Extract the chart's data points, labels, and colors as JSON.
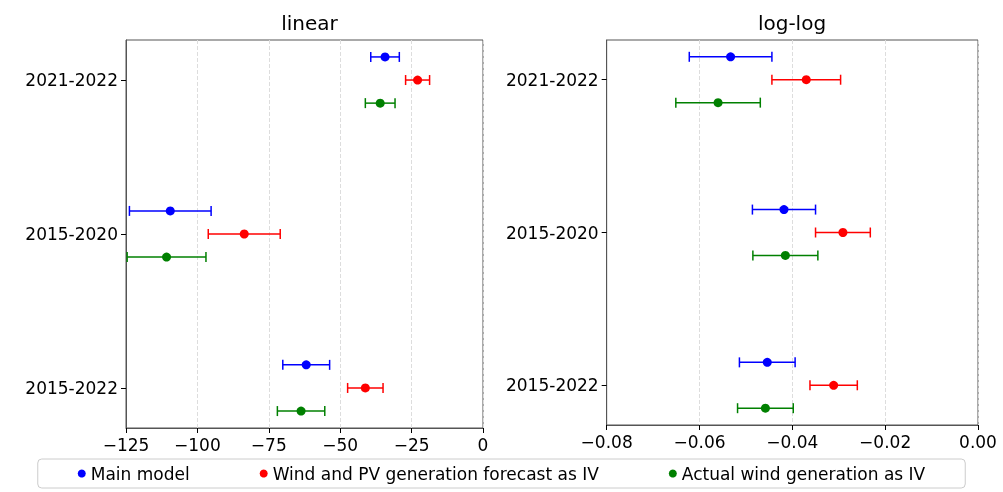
{
  "chart_data": [
    {
      "type": "scatter",
      "title": "linear",
      "orientation": "horizontal",
      "categories": [
        "2021-2022",
        "2015-2020",
        "2015-2022"
      ],
      "marker": "circle",
      "grid": "x",
      "legend": "bottom",
      "xlim": [
        -125,
        0
      ],
      "xticks": [
        {
          "value": -125,
          "label": "−125"
        },
        {
          "value": -100,
          "label": "−100"
        },
        {
          "value": -75,
          "label": "−75"
        },
        {
          "value": -50,
          "label": "−50"
        },
        {
          "value": -25,
          "label": "−25"
        },
        0
      ],
      "series": [
        {
          "name": "Main model",
          "color": "#0000ff",
          "values": [
            -34.3,
            -109.5,
            -61.9
          ],
          "errors": [
            5,
            14.3,
            8.2
          ]
        },
        {
          "name": "Wind and PV generation forecast as IV",
          "color": "#ff0000",
          "values": [
            -22.9,
            -83.6,
            -41.2
          ],
          "errors": [
            4.2,
            12.6,
            6.2
          ]
        },
        {
          "name": "Actual wind generation as IV",
          "color": "#008000",
          "values": [
            -36,
            -110.8,
            -63.7
          ],
          "errors": [
            5.2,
            13.8,
            8.3
          ]
        }
      ]
    },
    {
      "type": "scatter",
      "title": "log-log",
      "orientation": "horizontal",
      "categories": [
        "2021-2022",
        "2015-2020",
        "2015-2022"
      ],
      "marker": "circle",
      "grid": "x",
      "xlim": [
        -0.08,
        0
      ],
      "xticks": [
        {
          "value": -0.08,
          "label": "−0.08"
        },
        {
          "value": -0.06,
          "label": "−0.06"
        },
        {
          "value": -0.04,
          "label": "−0.04"
        },
        {
          "value": -0.02,
          "label": "−0.02"
        },
        {
          "value": 0,
          "label": "0.00"
        }
      ],
      "series": [
        {
          "color": "#0000ff",
          "values": [
            -0.0533,
            -0.0418,
            -0.0454
          ],
          "errors": [
            0.0089,
            0.0068,
            0.006
          ]
        },
        {
          "color": "#ff0000",
          "values": [
            -0.037,
            -0.0291,
            -0.0311
          ],
          "errors": [
            0.0074,
            0.0059,
            0.0051
          ]
        },
        {
          "color": "#008000",
          "values": [
            -0.056,
            -0.0415,
            -0.0458
          ],
          "errors": [
            0.0091,
            0.007,
            0.006
          ]
        }
      ]
    }
  ]
}
